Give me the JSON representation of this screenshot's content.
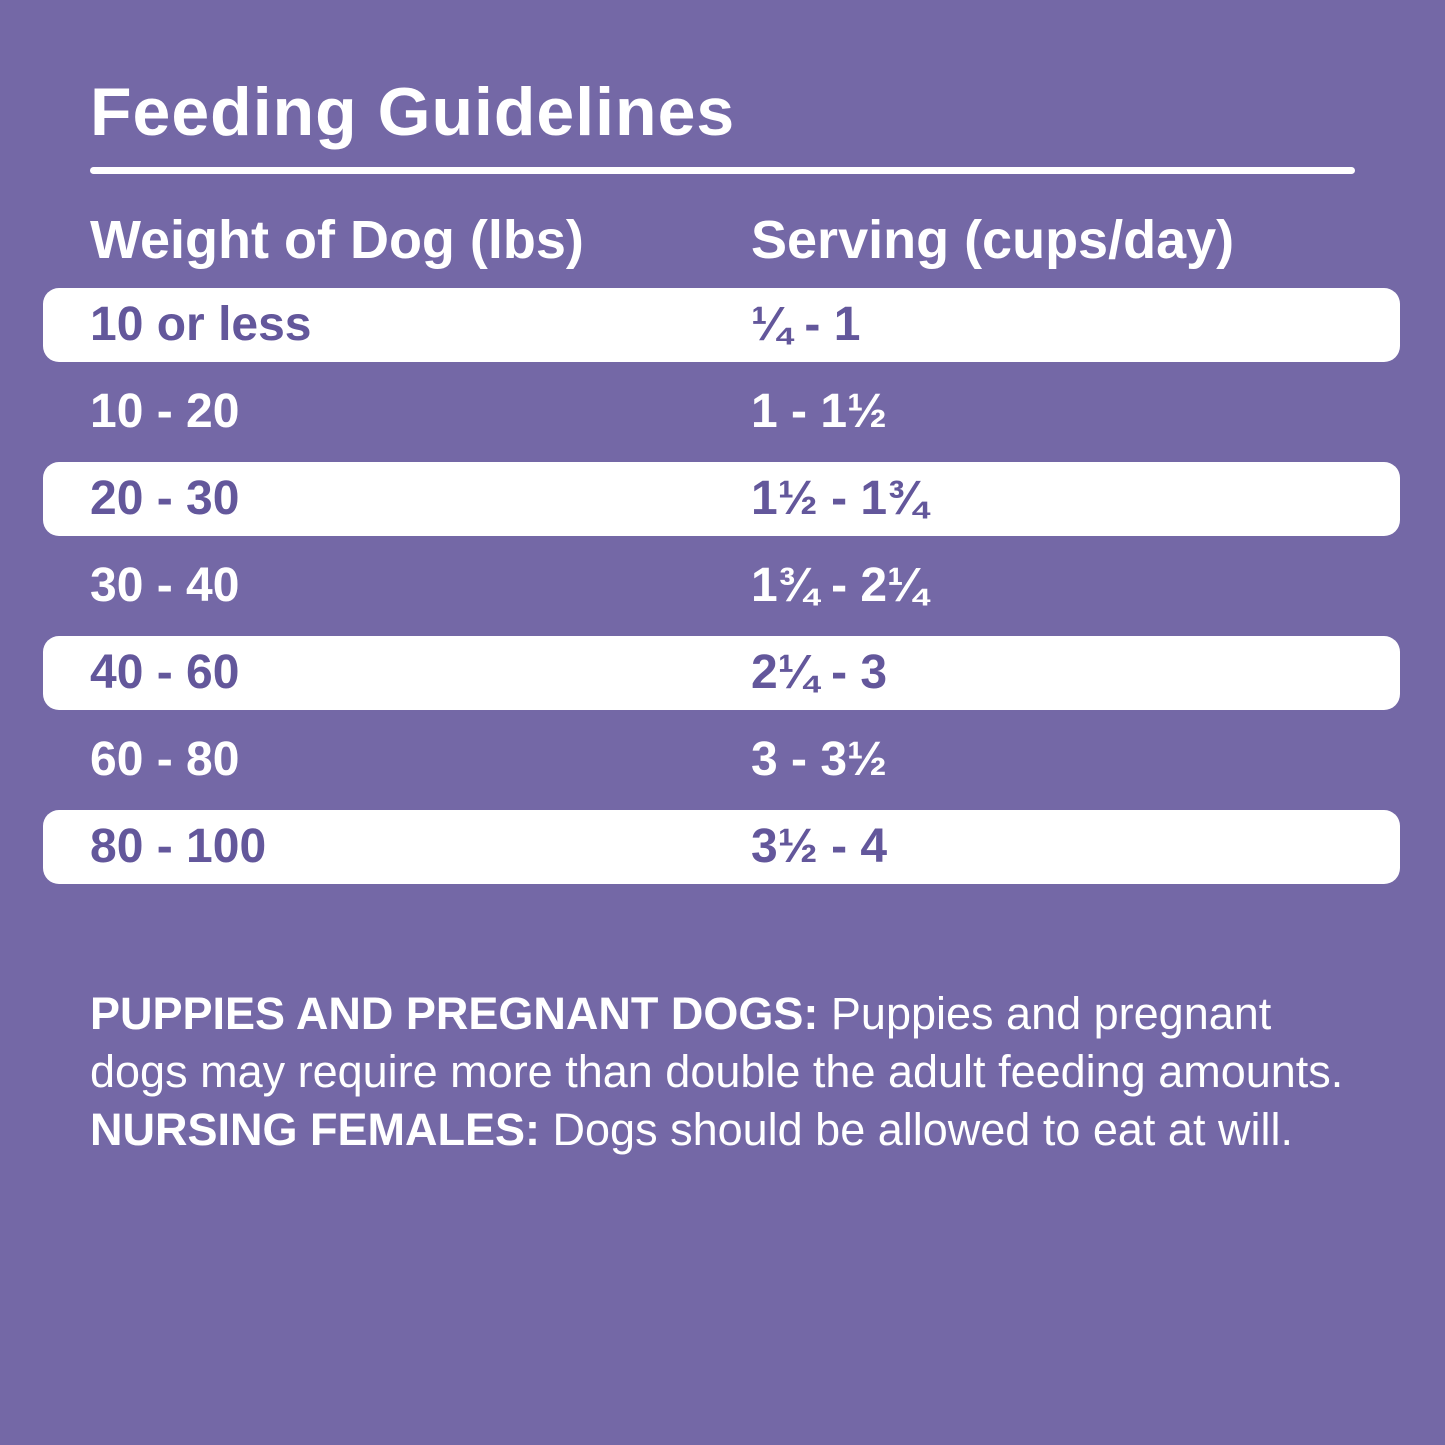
{
  "title": "Feeding Guidelines",
  "table": {
    "columns": [
      "Weight of Dog (lbs)",
      "Serving (cups/day)"
    ],
    "rows": [
      {
        "weight": "10 or less",
        "serving": "¼ - 1"
      },
      {
        "weight": "10 - 20",
        "serving": "1 - 1½"
      },
      {
        "weight": "20 - 30",
        "serving": "1½ - 1¾"
      },
      {
        "weight": "30 - 40",
        "serving": "1¾ - 2¼"
      },
      {
        "weight": "40 - 60",
        "serving": "2¼ - 3"
      },
      {
        "weight": "60 - 80",
        "serving": "3 - 3½"
      },
      {
        "weight": "80 - 100",
        "serving": "3½ - 4"
      }
    ]
  },
  "note": {
    "segments": [
      {
        "text": "PUPPIES AND PREGNANT DOGS: ",
        "bold": true
      },
      {
        "text": "Puppies and pregnant dogs may require more than double the adult feeding amounts. ",
        "bold": false
      },
      {
        "text": "NURSING FEMALES: ",
        "bold": true
      },
      {
        "text": "Dogs should be allowed to eat at will.",
        "bold": false
      }
    ]
  },
  "colors": {
    "background": "#7468A6",
    "text": "#FFFFFF",
    "row_background": "#FFFFFF",
    "row_text": "#63579B"
  },
  "chart_data": {
    "type": "table",
    "title": "Feeding Guidelines",
    "columns": [
      "Weight of Dog (lbs)",
      "Serving (cups/day)"
    ],
    "rows": [
      [
        "10 or less",
        "¼ - 1"
      ],
      [
        "10 - 20",
        "1 - 1½"
      ],
      [
        "20 - 30",
        "1½ - 1¾"
      ],
      [
        "30 - 40",
        "1¾ - 2¼"
      ],
      [
        "40 - 60",
        "2¼ - 3"
      ],
      [
        "60 - 80",
        "3 - 3½"
      ],
      [
        "80 - 100",
        "3½ - 4"
      ]
    ],
    "footnote": "PUPPIES AND PREGNANT DOGS: Puppies and pregnant dogs may require more than double the adult feeding amounts. NURSING FEMALES: Dogs should be allowed to eat at will.",
    "layout": "alternating white rounded rows on purple background"
  }
}
